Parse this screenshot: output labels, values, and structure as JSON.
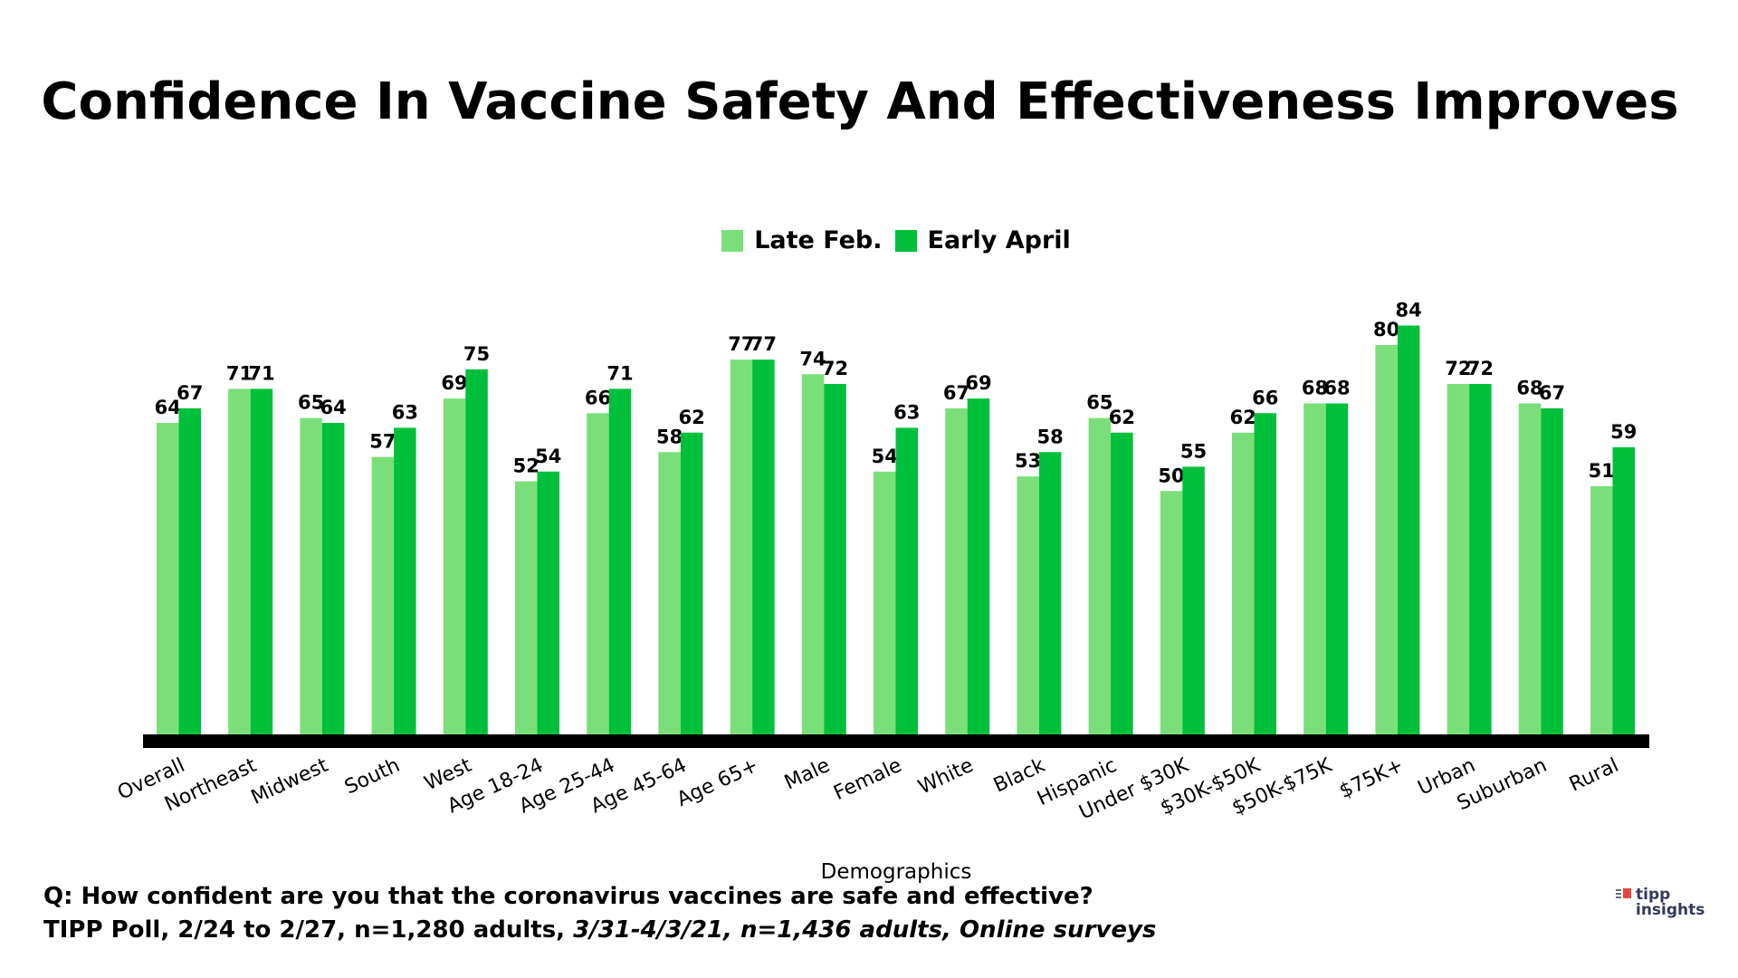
{
  "chart_data": {
    "type": "bar",
    "title": "Confidence In Vaccine Safety And Effectiveness Improves",
    "xlabel": "Demographics",
    "ylabel": "",
    "ylim": [
      0,
      100
    ],
    "grid": false,
    "legend_position": "top-center",
    "categories": [
      "Overall",
      "Northeast",
      "Midwest",
      "South",
      "West",
      "Age 18-24",
      "Age 25-44",
      "Age 45-64",
      "Age 65+",
      "Male",
      "Female",
      "White",
      "Black",
      "Hispanic",
      "Under $30K",
      "$30K-$50K",
      "$50K-$75K",
      "$75K+",
      "Urban",
      "Suburban",
      "Rural"
    ],
    "series": [
      {
        "name": "Late Feb.",
        "color": "#7ADF7A",
        "values": [
          64,
          71,
          65,
          57,
          69,
          52,
          66,
          58,
          77,
          74,
          54,
          67,
          53,
          65,
          50,
          62,
          68,
          80,
          72,
          68,
          51
        ]
      },
      {
        "name": "Early April",
        "color": "#00BF3A",
        "values": [
          67,
          71,
          64,
          63,
          75,
          54,
          71,
          62,
          77,
          72,
          63,
          69,
          58,
          62,
          55,
          66,
          68,
          84,
          72,
          67,
          59
        ]
      }
    ]
  },
  "footer": {
    "question": "Q:  How confident are you that the coronavirus vaccines are safe and effective?",
    "source_plain": "TIPP Poll, 2/24 to 2/27, n=1,280 adults, ",
    "source_italic": "3/31-4/3/21, n=1,436 adults, Online surveys"
  },
  "logo": {
    "text_top": "tipp",
    "text_bottom": "insights"
  }
}
